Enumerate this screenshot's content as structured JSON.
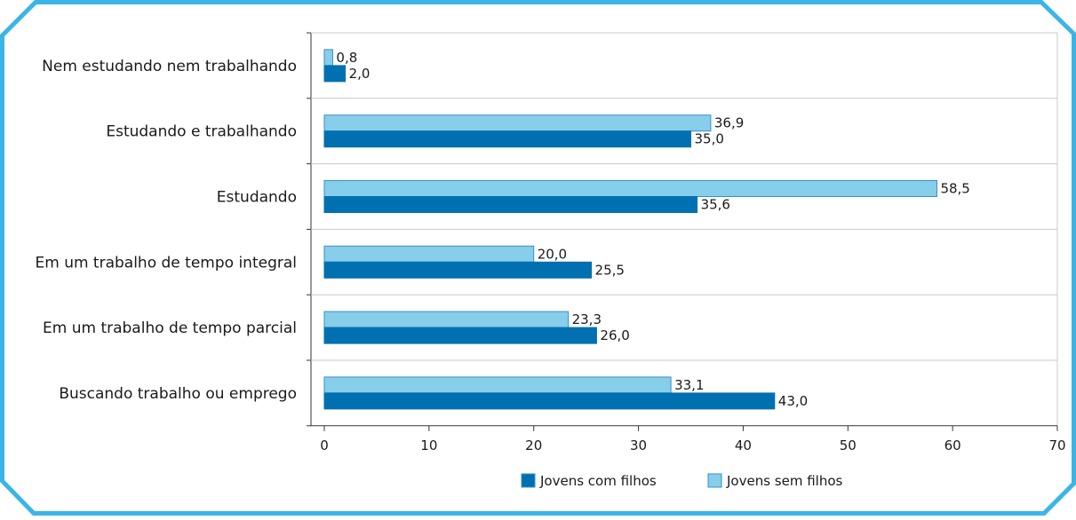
{
  "chart_data": {
    "type": "bar",
    "orientation": "horizontal",
    "categories": [
      "Nem estudando nem trabalhando",
      "Estudando e trabalhando",
      "Estudando",
      "Em um trabalho de tempo integral",
      "Em um trabalho de tempo parcial",
      "Buscando trabalho ou emprego"
    ],
    "series": [
      {
        "name": "Jovens sem filhos",
        "color": "#87ceeb",
        "values": [
          0.8,
          36.9,
          58.5,
          20.0,
          23.3,
          33.1
        ],
        "value_labels": [
          "0,8",
          "36,9",
          "58,5",
          "20,0",
          "23,3",
          "33,1"
        ]
      },
      {
        "name": "Jovens com filhos",
        "color": "#0070b0",
        "values": [
          2.0,
          35.0,
          35.6,
          25.5,
          26.0,
          43.0
        ],
        "value_labels": [
          "2,0",
          "35,0",
          "35,6",
          "25,5",
          "26,0",
          "43,0"
        ]
      }
    ],
    "xlim": [
      0,
      70
    ],
    "xticks": [
      0,
      10,
      20,
      30,
      40,
      50,
      60,
      70
    ],
    "legend": {
      "position": "bottom",
      "order": [
        "Jovens com filhos",
        "Jovens sem filhos"
      ]
    },
    "grid": "horizontal separators between categories",
    "frame_color": "#3bb5e6"
  }
}
